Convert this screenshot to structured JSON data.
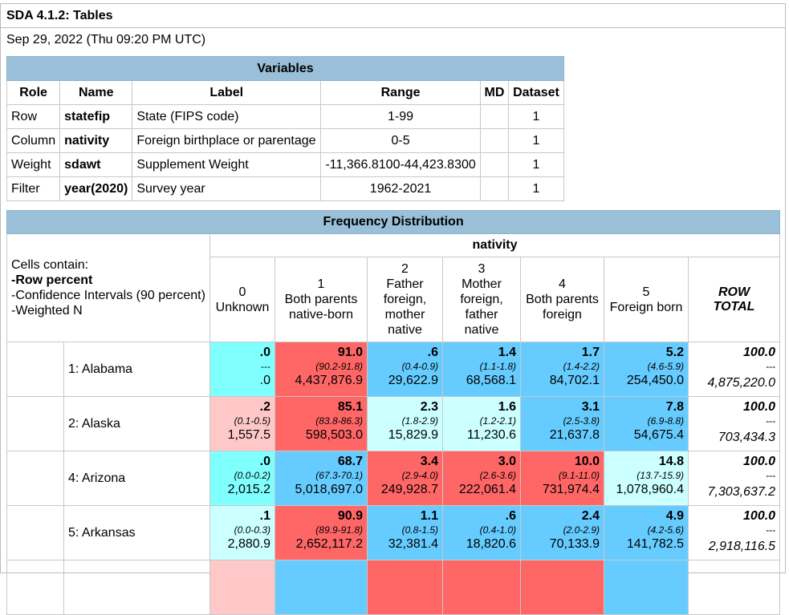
{
  "title": "SDA 4.1.2: Tables",
  "datetime": "Sep 29, 2022 (Thu 09:20 PM UTC)",
  "colors": {
    "header_bg": "#99c0d8",
    "red": "#ff6666",
    "pink": "#ffc8c8",
    "cyan": "#80ffff",
    "lightcyan": "#ccffff",
    "blue": "#66ccff"
  },
  "variables": {
    "heading": "Variables",
    "columns": [
      "Role",
      "Name",
      "Label",
      "Range",
      "MD",
      "Dataset"
    ],
    "rows": [
      [
        "Row",
        "statefip",
        "State (FIPS code)",
        "1-99",
        "",
        "1"
      ],
      [
        "Column",
        "nativity",
        "Foreign birthplace or parentage",
        "0-5",
        "",
        "1"
      ],
      [
        "Weight",
        "sdawt",
        "Supplement Weight",
        "-11,366.8100-44,423.8300",
        "",
        "1"
      ],
      [
        "Filter",
        "year(2020)",
        "Survey year",
        "1962-2021",
        "",
        "1"
      ]
    ]
  },
  "frequency": {
    "heading": "Frequency Distribution",
    "column_var": "nativity",
    "legend": [
      "Cells contain:",
      "-Row percent",
      "-Confidence Intervals (90 percent)",
      "-Weighted N"
    ],
    "columns": [
      [
        "0",
        "Unknown"
      ],
      [
        "1",
        "Both parents",
        "native-born"
      ],
      [
        "2",
        "Father",
        "foreign,",
        "mother",
        "native"
      ],
      [
        "3",
        "Mother",
        "foreign,",
        "father",
        "native"
      ],
      [
        "4",
        "Both parents",
        "foreign"
      ],
      [
        "5",
        "Foreign born"
      ]
    ],
    "row_total_label": [
      "ROW",
      "TOTAL"
    ],
    "rows": [
      {
        "state": "1: Alabama",
        "cells": [
          {
            "pct": ".0",
            "ci": "---",
            "n": ".0",
            "color": "cyan"
          },
          {
            "pct": "91.0",
            "ci": "(90.2-91.8)",
            "n": "4,437,876.9",
            "color": "red"
          },
          {
            "pct": ".6",
            "ci": "(0.4-0.9)",
            "n": "29,622.9",
            "color": "blue"
          },
          {
            "pct": "1.4",
            "ci": "(1.1-1.8)",
            "n": "68,568.1",
            "color": "blue"
          },
          {
            "pct": "1.7",
            "ci": "(1.4-2.2)",
            "n": "84,702.1",
            "color": "blue"
          },
          {
            "pct": "5.2",
            "ci": "(4.6-5.9)",
            "n": "254,450.0",
            "color": "blue"
          }
        ],
        "total": {
          "pct": "100.0",
          "ci": "---",
          "n": "4,875,220.0"
        }
      },
      {
        "state": "2: Alaska",
        "cells": [
          {
            "pct": ".2",
            "ci": "(0.1-0.5)",
            "n": "1,557.5",
            "color": "pink"
          },
          {
            "pct": "85.1",
            "ci": "(83.8-86.3)",
            "n": "598,503.0",
            "color": "red"
          },
          {
            "pct": "2.3",
            "ci": "(1.8-2.9)",
            "n": "15,829.9",
            "color": "lightcyan"
          },
          {
            "pct": "1.6",
            "ci": "(1.2-2.1)",
            "n": "11,230.6",
            "color": "lightcyan"
          },
          {
            "pct": "3.1",
            "ci": "(2.5-3.8)",
            "n": "21,637.8",
            "color": "blue"
          },
          {
            "pct": "7.8",
            "ci": "(6.9-8.8)",
            "n": "54,675.4",
            "color": "blue"
          }
        ],
        "total": {
          "pct": "100.0",
          "ci": "---",
          "n": "703,434.3"
        }
      },
      {
        "state": "4: Arizona",
        "cells": [
          {
            "pct": ".0",
            "ci": "(0.0-0.2)",
            "n": "2,015.2",
            "color": "cyan"
          },
          {
            "pct": "68.7",
            "ci": "(67.3-70.1)",
            "n": "5,018,697.0",
            "color": "blue"
          },
          {
            "pct": "3.4",
            "ci": "(2.9-4.0)",
            "n": "249,928.7",
            "color": "red"
          },
          {
            "pct": "3.0",
            "ci": "(2.6-3.6)",
            "n": "222,061.4",
            "color": "red"
          },
          {
            "pct": "10.0",
            "ci": "(9.1-11.0)",
            "n": "731,974.4",
            "color": "red"
          },
          {
            "pct": "14.8",
            "ci": "(13.7-15.9)",
            "n": "1,078,960.4",
            "color": "lightcyan"
          }
        ],
        "total": {
          "pct": "100.0",
          "ci": "---",
          "n": "7,303,637.2"
        }
      },
      {
        "state": "5: Arkansas",
        "cells": [
          {
            "pct": ".1",
            "ci": "(0.0-0.3)",
            "n": "2,880.9",
            "color": "lightcyan"
          },
          {
            "pct": "90.9",
            "ci": "(89.9-91.8)",
            "n": "2,652,117.2",
            "color": "red"
          },
          {
            "pct": "1.1",
            "ci": "(0.8-1.5)",
            "n": "32,381.4",
            "color": "blue"
          },
          {
            "pct": ".6",
            "ci": "(0.4-1.0)",
            "n": "18,820.6",
            "color": "blue"
          },
          {
            "pct": "2.4",
            "ci": "(2.0-2.9)",
            "n": "70,133.9",
            "color": "blue"
          },
          {
            "pct": "4.9",
            "ci": "(4.2-5.6)",
            "n": "141,782.5",
            "color": "blue"
          }
        ],
        "total": {
          "pct": "100.0",
          "ci": "---",
          "n": "2,918,116.5"
        }
      },
      {
        "state": "",
        "cells": [
          {
            "pct": "",
            "ci": "",
            "n": "",
            "color": "pink"
          },
          {
            "pct": "",
            "ci": "",
            "n": "",
            "color": "blue"
          },
          {
            "pct": "",
            "ci": "",
            "n": "",
            "color": "red"
          },
          {
            "pct": "",
            "ci": "",
            "n": "",
            "color": "red"
          },
          {
            "pct": "",
            "ci": "",
            "n": "",
            "color": "red"
          },
          {
            "pct": "",
            "ci": "",
            "n": "",
            "color": "blue"
          }
        ],
        "total": {
          "pct": "",
          "ci": "",
          "n": ""
        }
      }
    ]
  }
}
